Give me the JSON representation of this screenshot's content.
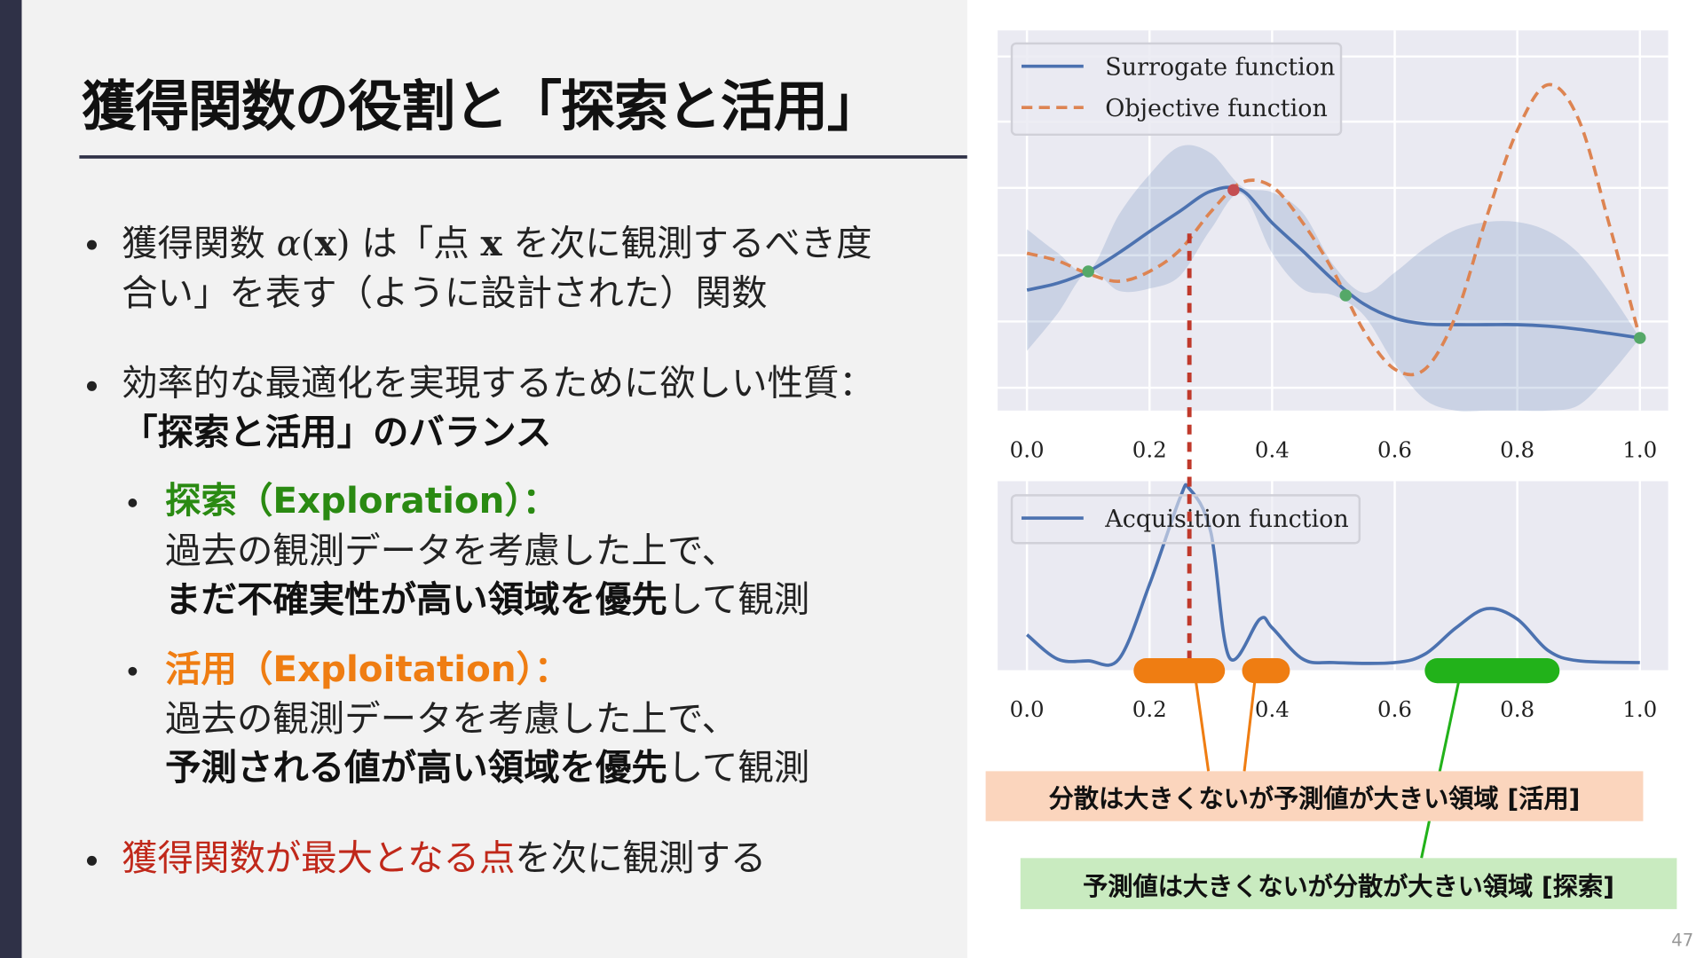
{
  "slide": {
    "title": "獲得関数の役割と「探索と活用」",
    "page_number": "47",
    "bullets": {
      "b1": {
        "t1": "獲得関数 ",
        "math1": "α",
        "math1b": "(",
        "math1x": "x",
        "math1c": ")",
        "t2": " は「点 ",
        "math2": "x",
        "t3": " を次に観測するべき度",
        "t4": "合い」を表す（ように設計された）関数"
      },
      "b2": {
        "t1": "効率的な最適化を実現するために欲しい性質：",
        "t2": "「探索と活用」のバランス"
      },
      "sub1": {
        "head": "探索（Exploration）：",
        "l1": "過去の観測データを考慮した上で、",
        "l2_bold": "まだ不確実性が高い領域を優先",
        "l2_rest": "して観測"
      },
      "sub2": {
        "head": "活用（Exploitation）：",
        "l1": "過去の観測データを考慮した上で、",
        "l2_bold": "予測される値が高い領域を優先",
        "l2_rest": "して観測"
      },
      "b3": {
        "red": "獲得関数が最大となる点",
        "rest": "を次に観測する"
      }
    },
    "callouts": {
      "exploit": "分散は大きくないが予測値が大きい領域 [活用]",
      "explore": "予測値は大きくないが分散が大きい領域 [探索]"
    },
    "colors": {
      "sidebar": "#2f3147",
      "explore": "#2a8a12",
      "exploit": "#ef7d12",
      "highlight": "#c0281a",
      "surrogate": "#4c72b0",
      "objective": "#dd8452",
      "explore_box": "#c9ebc0",
      "exploit_box": "#fbd5bd"
    }
  },
  "chart_data": [
    {
      "type": "line",
      "xlim": [
        0,
        1
      ],
      "ylim": [
        0,
        1
      ],
      "grid": true,
      "legend": "top-left",
      "xticks": [
        "0.0",
        "0.2",
        "0.4",
        "0.6",
        "0.8",
        "1.0"
      ],
      "x": [
        0,
        0.05,
        0.1,
        0.15,
        0.2,
        0.25,
        0.3,
        0.35,
        0.4,
        0.45,
        0.5,
        0.55,
        0.6,
        0.65,
        0.7,
        0.75,
        0.8,
        0.85,
        0.9,
        0.95,
        1.0
      ],
      "series": [
        {
          "name": "Surrogate function",
          "style": "solid",
          "values": [
            0.317,
            0.335,
            0.366,
            0.415,
            0.471,
            0.525,
            0.577,
            0.58,
            0.494,
            0.42,
            0.343,
            0.28,
            0.243,
            0.228,
            0.226,
            0.226,
            0.226,
            0.222,
            0.214,
            0.203,
            0.191
          ]
        },
        {
          "name": "Objective function",
          "style": "dashed",
          "values": [
            0.414,
            0.394,
            0.36,
            0.34,
            0.366,
            0.423,
            0.523,
            0.6,
            0.589,
            0.494,
            0.366,
            0.209,
            0.109,
            0.11,
            0.251,
            0.509,
            0.737,
            0.857,
            0.766,
            0.49,
            0.191
          ]
        }
      ],
      "uncertainty_sd": [
        0.16,
        0.08,
        0.0,
        0.1,
        0.15,
        0.17,
        0.1,
        0.01,
        0.08,
        0.1,
        0.04,
        0.03,
        0.12,
        0.2,
        0.25,
        0.27,
        0.27,
        0.25,
        0.2,
        0.11,
        0.0
      ],
      "observations": [
        [
          0.1,
          0.366
        ],
        [
          0.52,
          0.303
        ],
        [
          1.0,
          0.191
        ]
      ],
      "next_point": [
        0.337,
        0.58
      ]
    },
    {
      "type": "line",
      "xlim": [
        0,
        1
      ],
      "ylim": [
        0,
        1
      ],
      "grid": true,
      "legend": "top-left",
      "xticks": [
        "0.0",
        "0.2",
        "0.4",
        "0.6",
        "0.8",
        "1.0"
      ],
      "series": [
        {
          "name": "Acquisition function",
          "x": [
            0,
            0.05,
            0.1,
            0.15,
            0.2,
            0.25,
            0.265,
            0.3,
            0.33,
            0.38,
            0.4,
            0.45,
            0.5,
            0.6,
            0.65,
            0.7,
            0.75,
            0.8,
            0.85,
            0.9,
            1.0
          ],
          "values": [
            0.16,
            0.02,
            0.01,
            0.02,
            0.45,
            0.95,
            1.0,
            0.75,
            0.03,
            0.25,
            0.2,
            0.02,
            0.0,
            0.0,
            0.05,
            0.2,
            0.31,
            0.25,
            0.07,
            0.01,
            0.0
          ]
        }
      ],
      "argmax_x": 0.265,
      "regions": [
        {
          "kind": "exploit",
          "range": [
            0.174,
            0.323
          ]
        },
        {
          "kind": "exploit",
          "range": [
            0.351,
            0.429
          ]
        },
        {
          "kind": "explore",
          "range": [
            0.649,
            0.869
          ]
        }
      ]
    }
  ]
}
